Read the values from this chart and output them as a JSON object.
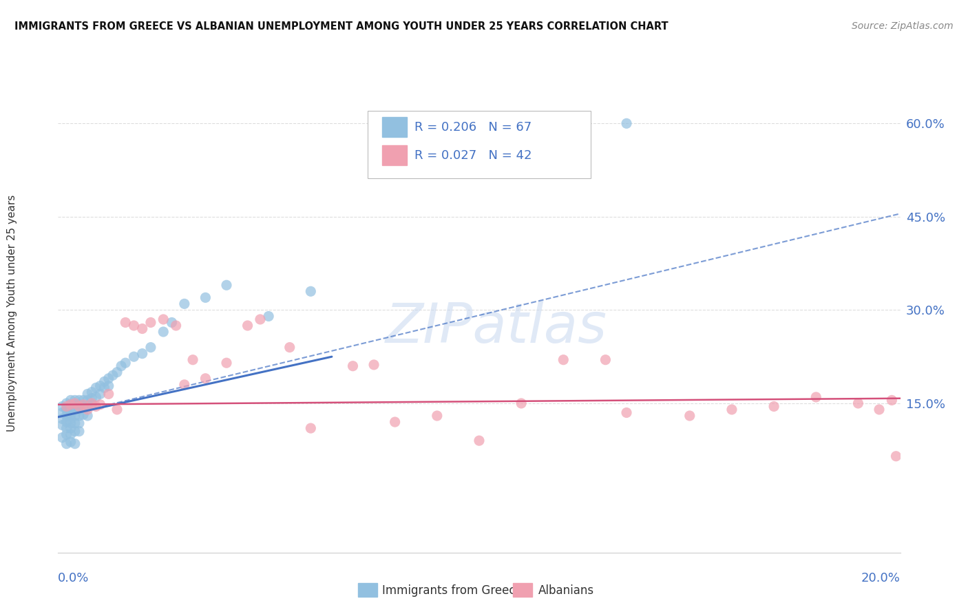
{
  "title": "IMMIGRANTS FROM GREECE VS ALBANIAN UNEMPLOYMENT AMONG YOUTH UNDER 25 YEARS CORRELATION CHART",
  "source": "Source: ZipAtlas.com",
  "ylabel": "Unemployment Among Youth under 25 years",
  "ytick_labels": [
    "15.0%",
    "30.0%",
    "45.0%",
    "60.0%"
  ],
  "ytick_values": [
    0.15,
    0.3,
    0.45,
    0.6
  ],
  "xlim": [
    0.0,
    0.2
  ],
  "ylim": [
    -0.09,
    0.68
  ],
  "legend1_label": "Immigrants from Greece",
  "legend2_label": "Albanians",
  "R1": 0.206,
  "N1": 67,
  "R2": 0.027,
  "N2": 42,
  "color_blue": "#92C0E0",
  "color_pink": "#F0A0B0",
  "color_blue_text": "#4472C4",
  "color_pink_text": "#D4507A",
  "watermark": "ZIPatlas",
  "blue_points_x": [
    0.001,
    0.001,
    0.001,
    0.001,
    0.001,
    0.002,
    0.002,
    0.002,
    0.002,
    0.002,
    0.002,
    0.002,
    0.003,
    0.003,
    0.003,
    0.003,
    0.003,
    0.003,
    0.003,
    0.003,
    0.003,
    0.004,
    0.004,
    0.004,
    0.004,
    0.004,
    0.004,
    0.004,
    0.005,
    0.005,
    0.005,
    0.005,
    0.005,
    0.005,
    0.006,
    0.006,
    0.006,
    0.007,
    0.007,
    0.007,
    0.007,
    0.008,
    0.008,
    0.008,
    0.009,
    0.009,
    0.01,
    0.01,
    0.011,
    0.011,
    0.012,
    0.012,
    0.013,
    0.014,
    0.015,
    0.016,
    0.018,
    0.02,
    0.022,
    0.025,
    0.027,
    0.03,
    0.035,
    0.04,
    0.05,
    0.06,
    0.135
  ],
  "blue_points_y": [
    0.145,
    0.135,
    0.125,
    0.115,
    0.095,
    0.15,
    0.14,
    0.13,
    0.12,
    0.11,
    0.1,
    0.085,
    0.155,
    0.148,
    0.14,
    0.132,
    0.125,
    0.118,
    0.11,
    0.1,
    0.088,
    0.155,
    0.148,
    0.14,
    0.13,
    0.118,
    0.105,
    0.085,
    0.155,
    0.148,
    0.14,
    0.13,
    0.118,
    0.105,
    0.155,
    0.145,
    0.132,
    0.165,
    0.155,
    0.145,
    0.13,
    0.168,
    0.158,
    0.148,
    0.175,
    0.16,
    0.178,
    0.165,
    0.185,
    0.175,
    0.19,
    0.178,
    0.195,
    0.2,
    0.21,
    0.215,
    0.225,
    0.23,
    0.24,
    0.265,
    0.28,
    0.31,
    0.32,
    0.34,
    0.29,
    0.33,
    0.6
  ],
  "pink_points_x": [
    0.002,
    0.003,
    0.004,
    0.005,
    0.006,
    0.007,
    0.008,
    0.009,
    0.01,
    0.012,
    0.014,
    0.016,
    0.018,
    0.02,
    0.022,
    0.025,
    0.028,
    0.032,
    0.035,
    0.04,
    0.048,
    0.055,
    0.06,
    0.07,
    0.08,
    0.09,
    0.1,
    0.11,
    0.12,
    0.135,
    0.15,
    0.16,
    0.17,
    0.18,
    0.19,
    0.195,
    0.198,
    0.199,
    0.03,
    0.045,
    0.075,
    0.13
  ],
  "pink_points_y": [
    0.145,
    0.148,
    0.15,
    0.145,
    0.148,
    0.14,
    0.15,
    0.145,
    0.148,
    0.165,
    0.14,
    0.28,
    0.275,
    0.27,
    0.28,
    0.285,
    0.275,
    0.22,
    0.19,
    0.215,
    0.285,
    0.24,
    0.11,
    0.21,
    0.12,
    0.13,
    0.09,
    0.15,
    0.22,
    0.135,
    0.13,
    0.14,
    0.145,
    0.16,
    0.15,
    0.14,
    0.155,
    0.065,
    0.18,
    0.275,
    0.212,
    0.22
  ],
  "blue_trend_x": [
    0.0,
    0.065
  ],
  "blue_trend_y": [
    0.128,
    0.225
  ],
  "dashed_trend_x": [
    0.0,
    0.2
  ],
  "dashed_trend_y": [
    0.128,
    0.455
  ],
  "pink_trend_x": [
    0.0,
    0.2
  ],
  "pink_trend_y": [
    0.148,
    0.158
  ]
}
